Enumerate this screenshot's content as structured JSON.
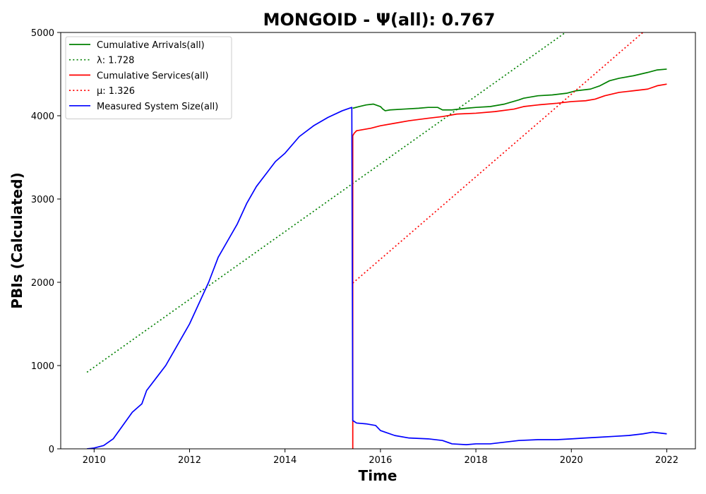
{
  "chart_data": {
    "type": "line",
    "title": "MONGOID -  Ψ(all): 0.767",
    "xlabel": "Time",
    "ylabel": "PBIs (Calculated)",
    "xlim": [
      2009.3,
      2022.6
    ],
    "ylim": [
      0,
      5000
    ],
    "x_ticks": [
      {
        "value": 2010,
        "label": "2010"
      },
      {
        "value": 2012,
        "label": "2012"
      },
      {
        "value": 2014,
        "label": "2014"
      },
      {
        "value": 2016,
        "label": "2016"
      },
      {
        "value": 2018,
        "label": "2018"
      },
      {
        "value": 2020,
        "label": "2020"
      },
      {
        "value": 2022,
        "label": "2022"
      }
    ],
    "y_ticks": [
      {
        "value": 0,
        "label": "0"
      },
      {
        "value": 1000,
        "label": "1000"
      },
      {
        "value": 2000,
        "label": "2000"
      },
      {
        "value": 3000,
        "label": "3000"
      },
      {
        "value": 4000,
        "label": "4000"
      },
      {
        "value": 5000,
        "label": "5000"
      }
    ],
    "grid": false,
    "legend_position": "top-left",
    "legend_order": [
      0,
      1,
      2,
      3,
      4
    ],
    "series": [
      {
        "name": "Cumulative Arrivals(all)",
        "color": "#008000",
        "style": "solid",
        "x": [
          2015.42,
          2015.55,
          2015.7,
          2015.85,
          2016.0,
          2016.05,
          2016.1,
          2016.2,
          2016.5,
          2016.8,
          2017.0,
          2017.2,
          2017.3,
          2017.5,
          2017.8,
          2018.0,
          2018.3,
          2018.6,
          2018.9,
          2019.0,
          2019.3,
          2019.6,
          2019.9,
          2020.1,
          2020.4,
          2020.6,
          2020.8,
          2021.0,
          2021.3,
          2021.6,
          2021.8,
          2022.0
        ],
        "y": [
          4090,
          4110,
          4130,
          4140,
          4110,
          4080,
          4060,
          4070,
          4080,
          4090,
          4100,
          4100,
          4070,
          4070,
          4090,
          4100,
          4110,
          4140,
          4190,
          4210,
          4240,
          4250,
          4270,
          4300,
          4320,
          4360,
          4420,
          4450,
          4480,
          4520,
          4550,
          4560
        ]
      },
      {
        "name": "λ: 1.728",
        "color": "#008000",
        "style": "dotted",
        "x": [
          2009.85,
          2020.0
        ],
        "y": [
          920,
          5050
        ]
      },
      {
        "name": "Cumulative Services(all)",
        "color": "#ff0000",
        "style": "solid",
        "x": [
          2015.42,
          2015.42,
          2015.45,
          2015.5,
          2015.6,
          2015.8,
          2016.0,
          2016.3,
          2016.6,
          2017.0,
          2017.3,
          2017.6,
          2018.0,
          2018.4,
          2018.8,
          2019.0,
          2019.3,
          2019.7,
          2020.0,
          2020.3,
          2020.5,
          2020.7,
          2021.0,
          2021.3,
          2021.6,
          2021.8,
          2022.0
        ],
        "y": [
          0,
          3760,
          3790,
          3820,
          3830,
          3850,
          3880,
          3910,
          3940,
          3970,
          3990,
          4020,
          4030,
          4050,
          4080,
          4110,
          4130,
          4150,
          4170,
          4180,
          4200,
          4240,
          4280,
          4300,
          4320,
          4360,
          4380
        ]
      },
      {
        "name": "μ: 1.326",
        "color": "#ff0000",
        "style": "dotted",
        "x": [
          2015.42,
          2021.6
        ],
        "y": [
          1990,
          5050
        ]
      },
      {
        "name": "Measured System Size(all)",
        "color": "#0000ff",
        "style": "solid",
        "x": [
          2009.85,
          2010.0,
          2010.2,
          2010.4,
          2010.6,
          2010.8,
          2011.0,
          2011.1,
          2011.3,
          2011.5,
          2011.7,
          2011.9,
          2012.0,
          2012.2,
          2012.4,
          2012.6,
          2012.8,
          2013.0,
          2013.2,
          2013.4,
          2013.6,
          2013.8,
          2014.0,
          2014.3,
          2014.6,
          2014.9,
          2015.2,
          2015.4,
          2015.42,
          2015.5,
          2015.7,
          2015.9,
          2016.0,
          2016.1,
          2016.3,
          2016.6,
          2017.0,
          2017.3,
          2017.5,
          2017.8,
          2018.0,
          2018.3,
          2018.6,
          2018.9,
          2019.3,
          2019.7,
          2020.0,
          2020.3,
          2020.6,
          2020.9,
          2021.2,
          2021.5,
          2021.7,
          2022.0
        ],
        "y": [
          0,
          10,
          40,
          120,
          280,
          440,
          540,
          700,
          850,
          1000,
          1200,
          1400,
          1500,
          1750,
          2000,
          2300,
          2500,
          2700,
          2950,
          3150,
          3300,
          3450,
          3550,
          3750,
          3880,
          3980,
          4060,
          4100,
          340,
          310,
          300,
          280,
          220,
          200,
          160,
          130,
          120,
          100,
          60,
          50,
          60,
          60,
          80,
          100,
          110,
          110,
          120,
          130,
          140,
          150,
          160,
          180,
          200,
          180
        ]
      }
    ]
  }
}
